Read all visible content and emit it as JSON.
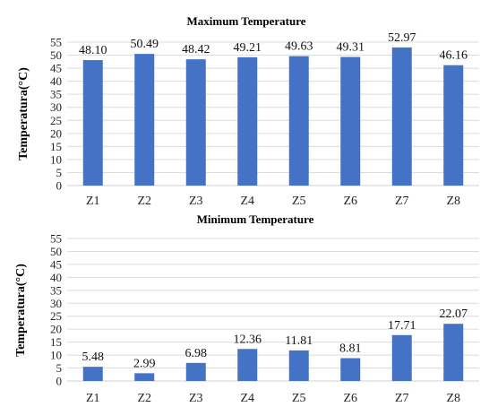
{
  "chart_data": [
    {
      "type": "bar",
      "title": "Maximum Temperature",
      "ylabel": "Temperatura(°C)",
      "xlabel": "",
      "categories": [
        "Z1",
        "Z2",
        "Z3",
        "Z4",
        "Z5",
        "Z6",
        "Z7",
        "Z8"
      ],
      "values": [
        48.1,
        50.49,
        48.42,
        49.21,
        49.63,
        49.31,
        52.97,
        46.16
      ],
      "data_labels": [
        "48.10",
        "50.49",
        "48.42",
        "49.21",
        "49.63",
        "49.31",
        "52.97",
        "46.16"
      ],
      "ylim": [
        0,
        55
      ],
      "yticks": [
        "0",
        "5",
        "10",
        "15",
        "20",
        "25",
        "30",
        "35",
        "40",
        "45",
        "50",
        "55"
      ],
      "grid": true,
      "bar_color": "#4472C4"
    },
    {
      "type": "bar",
      "title": "Minimum Temperature",
      "ylabel": "Temperatura(°C)",
      "xlabel": "",
      "categories": [
        "Z1",
        "Z2",
        "Z3",
        "Z4",
        "Z5",
        "Z6",
        "Z7",
        "Z8"
      ],
      "values": [
        5.48,
        2.99,
        6.98,
        12.36,
        11.81,
        8.81,
        17.71,
        22.07
      ],
      "data_labels": [
        "5.48",
        "2.99",
        "6.98",
        "12.36",
        "11.81",
        "8.81",
        "17.71",
        "22.07"
      ],
      "ylim": [
        0,
        55
      ],
      "yticks": [
        "0",
        "5",
        "10",
        "15",
        "20",
        "25",
        "30",
        "35",
        "40",
        "45",
        "50",
        "55"
      ],
      "grid": true,
      "bar_color": "#4472C4"
    }
  ]
}
